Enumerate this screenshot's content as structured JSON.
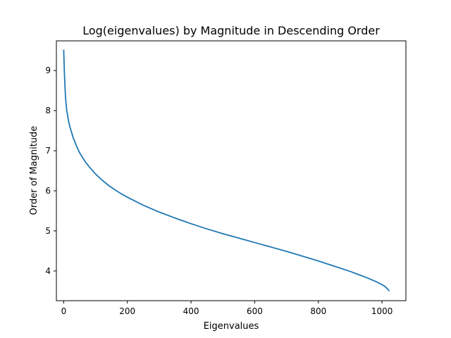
{
  "chart_data": {
    "type": "line",
    "title": "Log(eigenvalues) by Magnitude in Descending Order",
    "xlabel": "Eigenvalues",
    "ylabel": "Order of Magnitude",
    "xlim": [
      -23,
      1075
    ],
    "ylim": [
      3.26,
      9.74
    ],
    "xticks": [
      0,
      200,
      400,
      600,
      800,
      1000
    ],
    "yticks": [
      4,
      5,
      6,
      7,
      8,
      9
    ],
    "grid": false,
    "legend": "none",
    "series": [
      {
        "color": "#1f77b4",
        "x": [
          0,
          2,
          4,
          6,
          8,
          10,
          15,
          20,
          25,
          30,
          40,
          50,
          60,
          70,
          80,
          100,
          120,
          140,
          160,
          180,
          200,
          250,
          300,
          350,
          400,
          450,
          500,
          550,
          600,
          650,
          700,
          750,
          800,
          850,
          900,
          950,
          980,
          1000,
          1010,
          1020,
          1023
        ],
        "y": [
          9.52,
          9.0,
          8.6,
          8.3,
          8.12,
          7.98,
          7.75,
          7.58,
          7.45,
          7.32,
          7.12,
          6.95,
          6.82,
          6.7,
          6.6,
          6.42,
          6.27,
          6.14,
          6.03,
          5.93,
          5.84,
          5.64,
          5.47,
          5.32,
          5.18,
          5.05,
          4.93,
          4.82,
          4.71,
          4.6,
          4.49,
          4.37,
          4.25,
          4.12,
          3.99,
          3.84,
          3.74,
          3.66,
          3.61,
          3.53,
          3.5
        ]
      }
    ]
  }
}
